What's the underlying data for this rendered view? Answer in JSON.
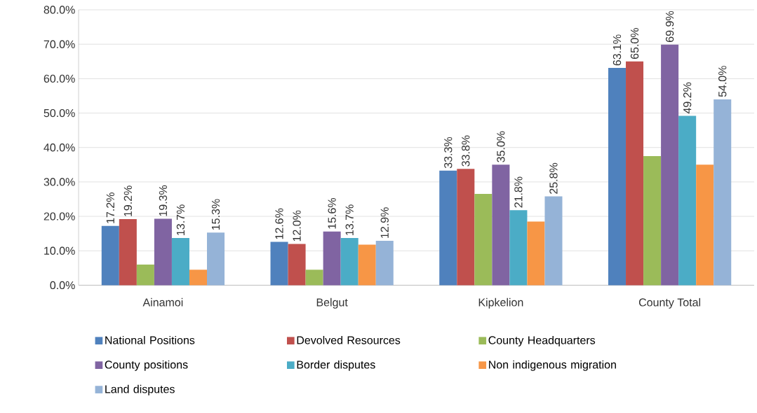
{
  "chart_data": {
    "type": "bar",
    "categories": [
      "Ainamoi",
      "Belgut",
      "Kipkelion",
      "County Total"
    ],
    "ylim": [
      0,
      80
    ],
    "yticks": [
      {
        "value": 0,
        "label": "0.0%"
      },
      {
        "value": 10,
        "label": "10.0%"
      },
      {
        "value": 20,
        "label": "20.0%"
      },
      {
        "value": 30,
        "label": "30.0%"
      },
      {
        "value": 40,
        "label": "40.0%"
      },
      {
        "value": 50,
        "label": "50.0%"
      },
      {
        "value": 60,
        "label": "60.0%"
      },
      {
        "value": 70,
        "label": "70.0%"
      },
      {
        "value": 80,
        "label": "80.0%"
      }
    ],
    "grid": "y",
    "legend": "bottom",
    "series": [
      {
        "name": "National Positions",
        "color": "#4f81bd",
        "values": [
          17.2,
          12.6,
          33.3,
          63.1
        ],
        "value_labels": [
          "17.2%",
          "12.6%",
          "33.3%",
          "63.1%"
        ]
      },
      {
        "name": "Devolved Resources",
        "color": "#c0504d",
        "values": [
          19.2,
          12.0,
          33.8,
          65.0
        ],
        "value_labels": [
          "19.2%",
          "12.0%",
          "33.8%",
          "65.0%"
        ]
      },
      {
        "name": "County Headquarters",
        "color": "#9bbb59",
        "values": [
          6.0,
          4.5,
          26.5,
          37.5
        ]
      },
      {
        "name": "County positions",
        "color": "#8064a2",
        "values": [
          19.3,
          15.6,
          35.0,
          69.9
        ],
        "value_labels": [
          "19.3%",
          "15.6%",
          "35.0%",
          "69.9%"
        ]
      },
      {
        "name": "Border disputes",
        "color": "#4bacc6",
        "values": [
          13.7,
          13.7,
          21.8,
          49.2
        ],
        "value_labels": [
          "13.7%",
          "13.7%",
          "21.8%",
          "49.2%"
        ]
      },
      {
        "name": "Non indigenous migration",
        "color": "#f79646",
        "values": [
          4.5,
          11.8,
          18.5,
          35.0
        ]
      },
      {
        "name": "Land disputes",
        "color": "#95b3d7",
        "values": [
          15.3,
          12.9,
          25.8,
          54.0
        ],
        "value_labels": [
          "15.3%",
          "12.9%",
          "25.8%",
          "54.0%"
        ]
      }
    ]
  }
}
